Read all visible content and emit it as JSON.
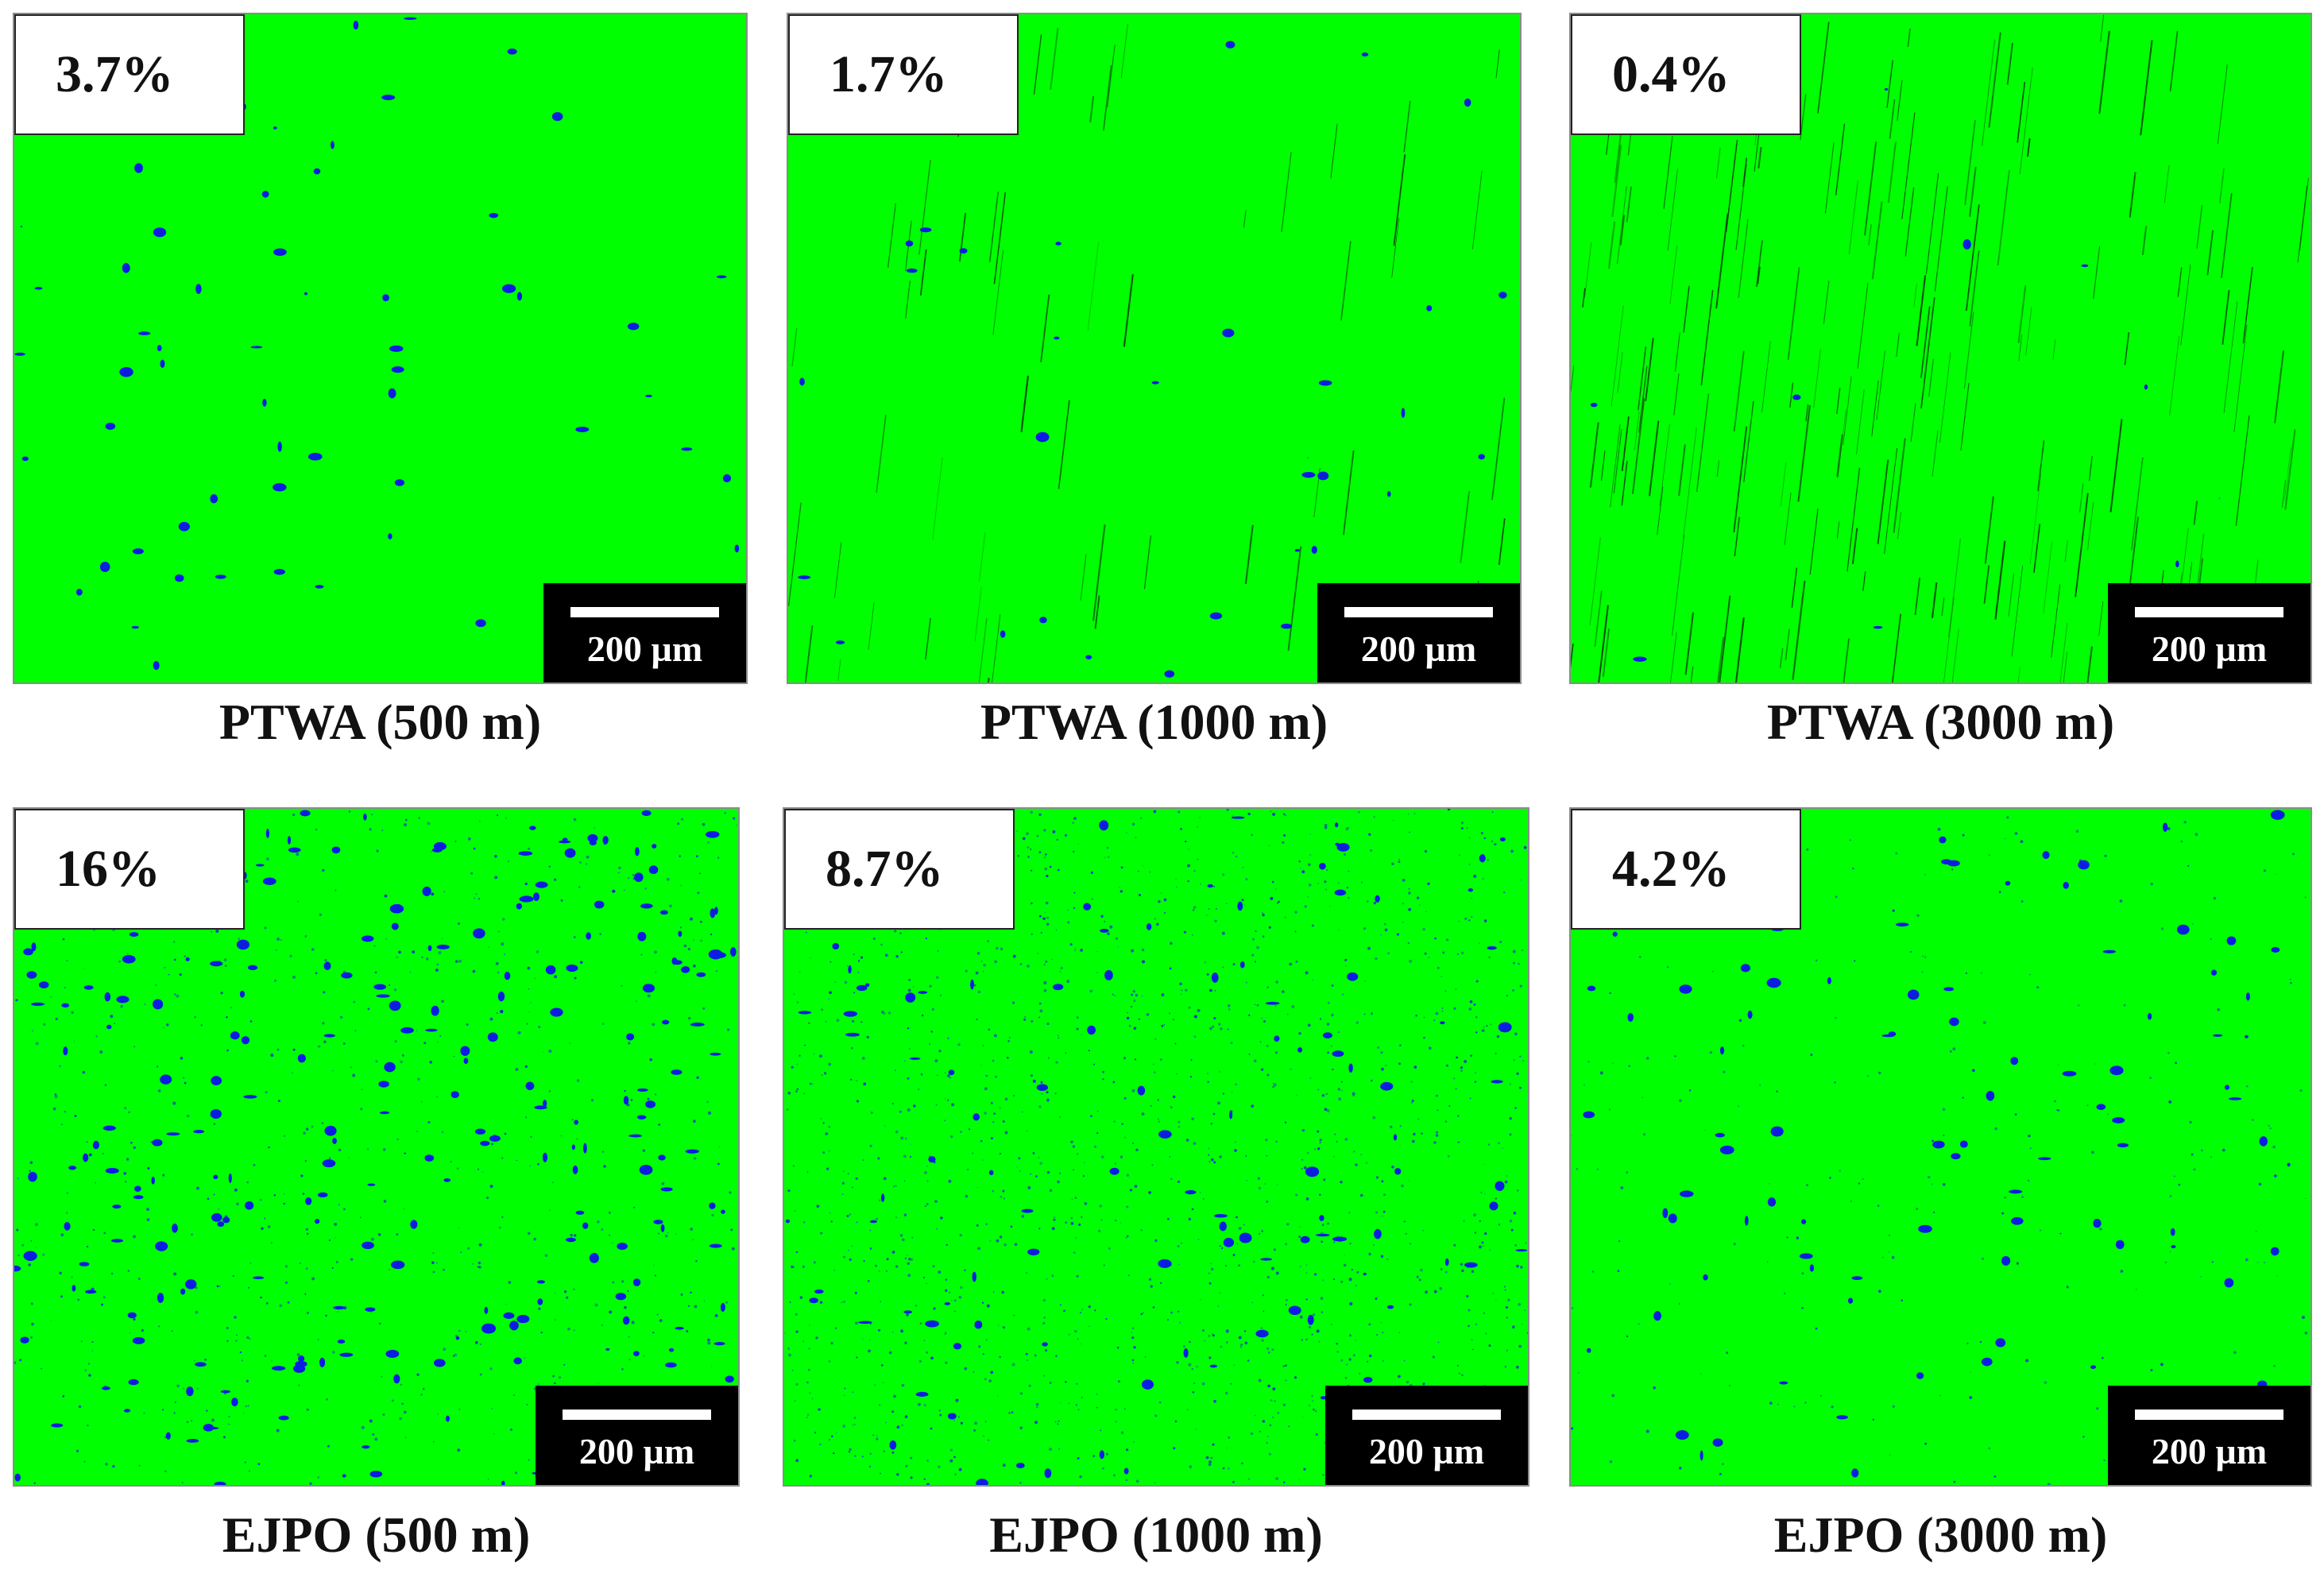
{
  "colors": {
    "surface": "#00ff00",
    "defects": "#0a1de0",
    "scratches": "#0a2a0a"
  },
  "panels": [
    {
      "badge": "3.7%",
      "scale": "200 µm",
      "caption": "PTWA (500 m)",
      "defect_fraction_percent": 3.7
    },
    {
      "badge": "1.7%",
      "scale": "200 µm",
      "caption": "PTWA (1000 m)",
      "defect_fraction_percent": 1.7
    },
    {
      "badge": "0.4%",
      "scale": "200 µm",
      "caption": "PTWA (3000 m)",
      "defect_fraction_percent": 0.4
    },
    {
      "badge": "16%",
      "scale": "200 µm",
      "caption": "EJPO (500 m)",
      "defect_fraction_percent": 16
    },
    {
      "badge": "8.7%",
      "scale": "200 µm",
      "caption": "EJPO (1000 m)",
      "defect_fraction_percent": 8.7
    },
    {
      "badge": "4.2%",
      "scale": "200 µm",
      "caption": "EJPO (3000 m)",
      "defect_fraction_percent": 4.2
    }
  ]
}
